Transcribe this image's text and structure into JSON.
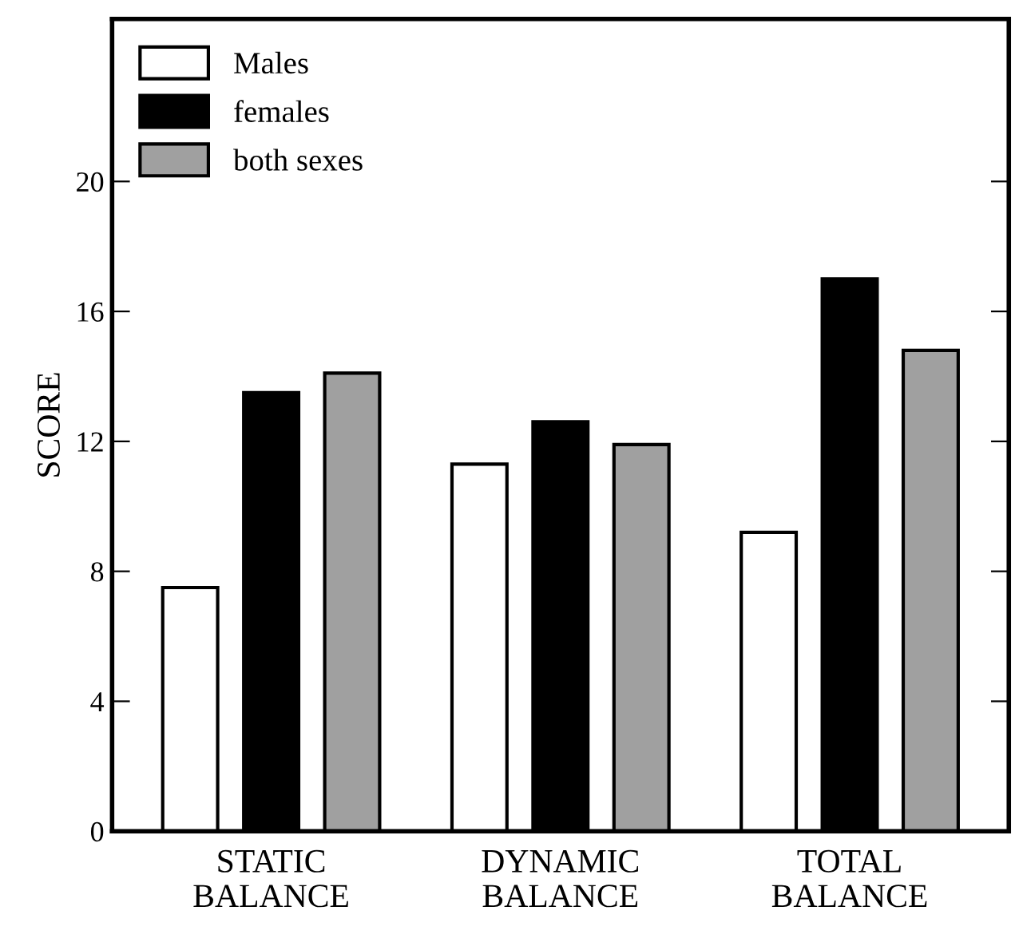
{
  "chart_data": {
    "type": "bar",
    "ylabel": "SCORE",
    "categories": [
      "STATIC\nBALANCE",
      "DYNAMIC\nBALANCE",
      "TOTAL\nBALANCE"
    ],
    "series": [
      {
        "name": "Males",
        "color": "#ffffff",
        "values": [
          7.5,
          11.3,
          9.2
        ]
      },
      {
        "name": "females",
        "color": "#000000",
        "values": [
          13.5,
          12.6,
          17.0
        ]
      },
      {
        "name": "both sexes",
        "color": "#a0a0a0",
        "values": [
          14.1,
          11.9,
          14.8
        ]
      }
    ],
    "ylim": [
      0,
      25
    ],
    "yticks": [
      0,
      4,
      8,
      12,
      16,
      20
    ],
    "grid": false,
    "legend": "top left"
  }
}
